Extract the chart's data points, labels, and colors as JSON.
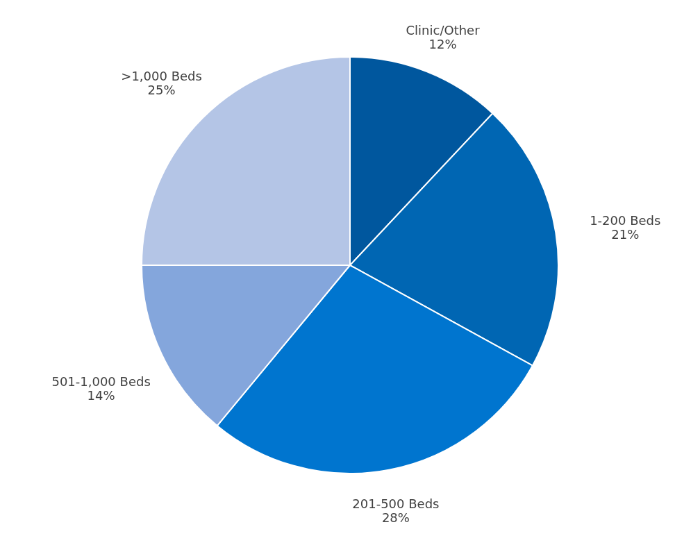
{
  "chart_data": {
    "type": "pie",
    "categories": [
      "Clinic/Other",
      "1-200 Beds",
      "201-500 Beds",
      "501-1,000 Beds",
      ">1,000 Beds"
    ],
    "values": [
      12,
      21,
      28,
      14,
      25
    ],
    "value_labels": [
      "12%",
      "21%",
      "28%",
      "14%",
      "25%"
    ],
    "colors": [
      "#00579e",
      "#0066b3",
      "#0075cf",
      "#84a6dc",
      "#b4c5e6"
    ]
  }
}
